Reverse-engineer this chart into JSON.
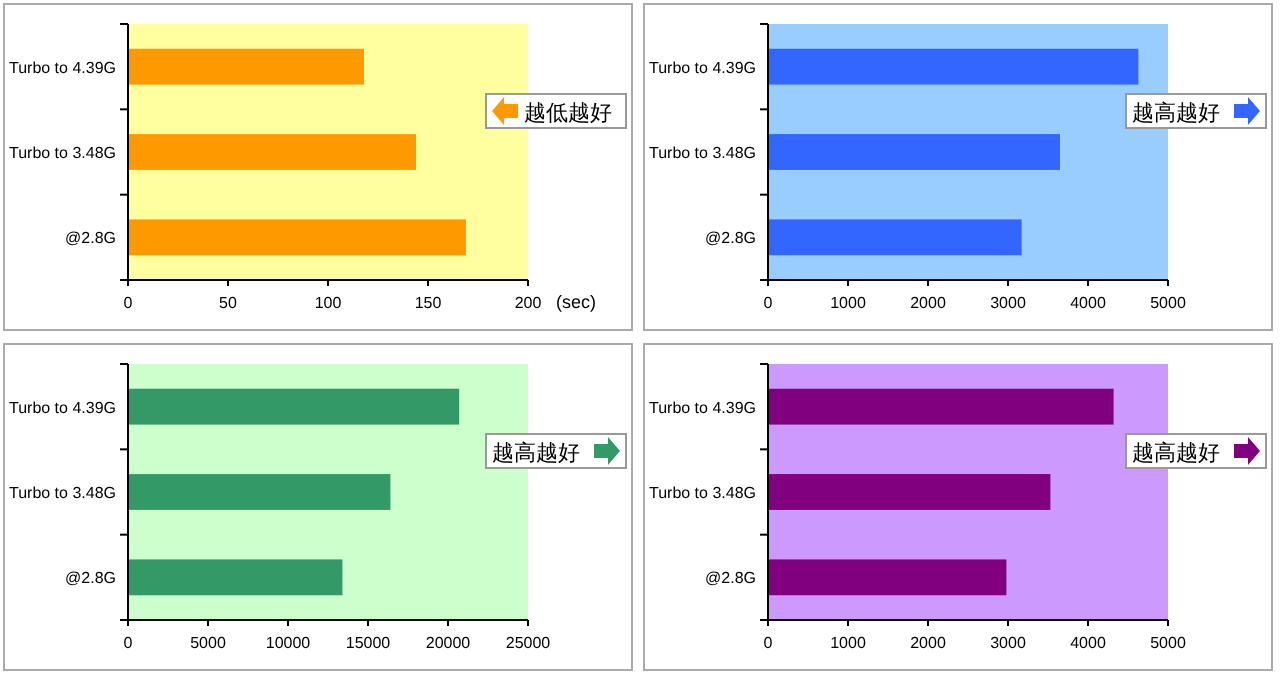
{
  "chart_data": [
    {
      "type": "bar",
      "orientation": "horizontal",
      "categories": [
        "Turbo to 4.39G",
        "Turbo to 3.48G",
        "@2.8G"
      ],
      "series": [
        {
          "color": "#ff9900",
          "values": [
            118,
            144,
            169
          ]
        }
      ],
      "xlim": [
        0,
        200
      ],
      "xticks": [
        0,
        50,
        100,
        150,
        200
      ],
      "xlabel": "(sec)",
      "annotations": [
        "越低越好"
      ]
    },
    {
      "type": "bar",
      "orientation": "horizontal",
      "categories": [
        "Turbo to 4.39G",
        "Turbo to 3.48G",
        "@2.8G"
      ],
      "series": [
        {
          "color": "#3366ff",
          "values": [
            4630,
            3650,
            3170
          ]
        }
      ],
      "xlim": [
        0,
        5000
      ],
      "xticks": [
        0,
        1000,
        2000,
        3000,
        4000,
        5000
      ],
      "annotations": [
        "越高越好"
      ]
    },
    {
      "type": "bar",
      "orientation": "horizontal",
      "categories": [
        "Turbo to 4.39G",
        "Turbo to 3.48G",
        "@2.8G"
      ],
      "series": [
        {
          "color": "#339966",
          "values": [
            20700,
            16400,
            13400
          ]
        }
      ],
      "xlim": [
        0,
        25000
      ],
      "xticks": [
        0,
        5000,
        10000,
        15000,
        20000,
        25000
      ],
      "annotations": [
        "越高越好"
      ]
    },
    {
      "type": "bar",
      "orientation": "horizontal",
      "categories": [
        "Turbo to 4.39G",
        "Turbo to 3.48G",
        "@2.8G"
      ],
      "series": [
        {
          "color": "#800080",
          "values": [
            4320,
            3530,
            2980
          ]
        }
      ],
      "xlim": [
        0,
        5000
      ],
      "xticks": [
        0,
        1000,
        2000,
        3000,
        4000,
        5000
      ],
      "annotations": [
        "越高越好"
      ]
    }
  ]
}
